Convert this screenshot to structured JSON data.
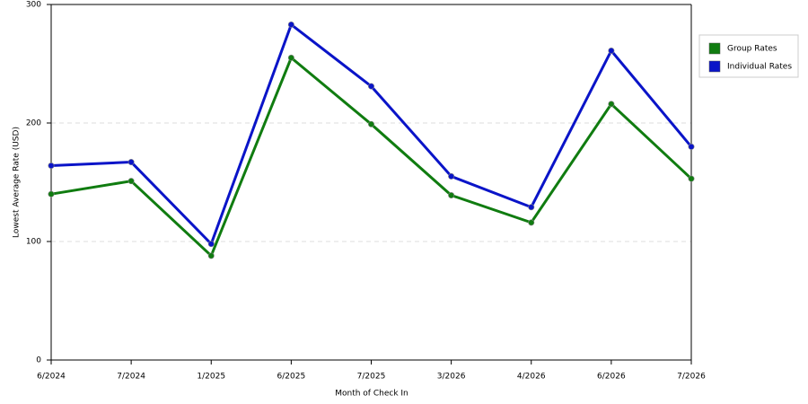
{
  "chart_data": {
    "type": "line",
    "x_label": "Month of Check In",
    "y_label": "Lowest Average Rate (USD)",
    "categories": [
      "6/2024",
      "7/2024",
      "1/2025",
      "6/2025",
      "7/2025",
      "3/2026",
      "4/2026",
      "6/2026",
      "7/2026"
    ],
    "series": [
      {
        "name": "Group Rates",
        "color": "#107c10",
        "values": [
          140,
          151,
          88,
          255,
          199,
          139,
          116,
          216,
          153
        ]
      },
      {
        "name": "Individual Rates",
        "color": "#0a14c8",
        "values": [
          164,
          167,
          98,
          283,
          231,
          155,
          129,
          261,
          180
        ]
      }
    ],
    "ylim": [
      0,
      300
    ],
    "yticks": [
      0,
      100,
      200,
      300
    ],
    "grid": true,
    "legend": "right"
  }
}
